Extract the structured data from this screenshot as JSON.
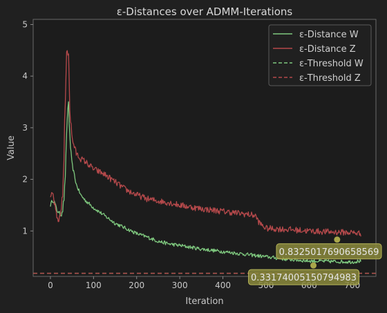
{
  "chart_data": {
    "type": "line",
    "title": "ε-Distances over ADMM-Iterations",
    "xlabel": "Iteration",
    "ylabel": "Value",
    "xlim": [
      -40,
      755
    ],
    "ylim": [
      0.12,
      5.1
    ],
    "xticks": [
      0,
      100,
      200,
      300,
      400,
      500,
      600,
      700
    ],
    "yticks": [
      1,
      2,
      3,
      4,
      5
    ],
    "grid": false,
    "legend_position": "top-right",
    "colors": {
      "background": "#202020",
      "plot_background": "#1c1c1c",
      "w": "#7fc97f",
      "z": "#b5494b",
      "annotation_dot": "#a8a64a",
      "annotation_box": "#8b8a3c"
    },
    "series": [
      {
        "name": "ε-Distance W",
        "style": "solid",
        "x": [
          0,
          5,
          10,
          15,
          20,
          25,
          30,
          33,
          36,
          39,
          42,
          45,
          50,
          60,
          70,
          80,
          100,
          125,
          150,
          175,
          200,
          225,
          250,
          275,
          300,
          350,
          400,
          450,
          500,
          550,
          600,
          650,
          700,
          720
        ],
        "y": [
          1.5,
          1.6,
          1.55,
          1.4,
          1.35,
          1.3,
          1.5,
          1.8,
          2.4,
          3.2,
          3.5,
          2.8,
          2.3,
          1.9,
          1.7,
          1.6,
          1.45,
          1.3,
          1.15,
          1.05,
          0.95,
          0.88,
          0.8,
          0.75,
          0.72,
          0.65,
          0.6,
          0.55,
          0.5,
          0.45,
          0.42,
          0.41,
          0.4,
          0.42
        ]
      },
      {
        "name": "ε-Distance Z",
        "style": "solid",
        "x": [
          0,
          5,
          10,
          15,
          20,
          25,
          30,
          33,
          36,
          39,
          42,
          45,
          50,
          60,
          70,
          80,
          100,
          125,
          150,
          175,
          200,
          225,
          250,
          275,
          300,
          350,
          400,
          450,
          475,
          485,
          500,
          550,
          600,
          650,
          700,
          720
        ],
        "y": [
          1.6,
          1.75,
          1.5,
          1.25,
          1.2,
          1.4,
          2.0,
          3.0,
          4.0,
          4.6,
          4.5,
          3.4,
          2.8,
          2.5,
          2.4,
          2.35,
          2.2,
          2.1,
          1.95,
          1.8,
          1.7,
          1.62,
          1.58,
          1.55,
          1.5,
          1.43,
          1.38,
          1.33,
          1.3,
          1.15,
          1.05,
          1.03,
          1.0,
          0.98,
          0.97,
          0.95
        ]
      },
      {
        "name": "ε-Threshold W",
        "style": "dashed",
        "value": 0.18
      },
      {
        "name": "ε-Threshold Z",
        "style": "dashed",
        "value": 0.18
      }
    ],
    "annotations": [
      {
        "x": 665,
        "y": 0.8325017690658569,
        "text": "0.8325017690658569"
      },
      {
        "x": 610,
        "y": 0.33174005150794983,
        "text": "0.33174005150794983"
      }
    ]
  }
}
